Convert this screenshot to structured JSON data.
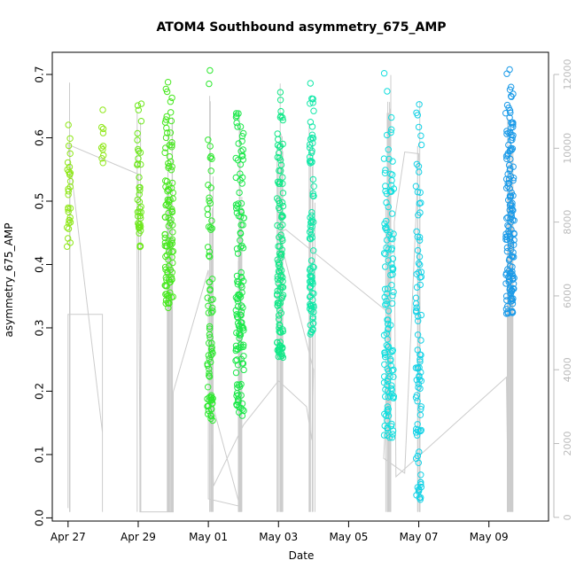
{
  "chart_data": {
    "type": "scatter",
    "title": "ATOM4 Southbound asymmetry_675_AMP",
    "xlabel": "Date",
    "ylabel": "asymmetry_675_AMP",
    "x_ticks": [
      "Apr 27",
      "Apr 29",
      "May 01",
      "May 03",
      "May 05",
      "May 07",
      "May 09"
    ],
    "x_tick_days": [
      0,
      2,
      4,
      6,
      8,
      10,
      12
    ],
    "xlim_days": [
      -0.45,
      13.7
    ],
    "ylim": [
      -0.005,
      0.735
    ],
    "y_ticks": [
      0.0,
      0.1,
      0.2,
      0.3,
      0.4,
      0.5,
      0.6,
      0.7
    ],
    "y_tick_labels": [
      "0.0",
      "0.1",
      "0.2",
      "0.3",
      "0.4",
      "0.5",
      "0.6",
      "0.7"
    ],
    "y2_ticks": [
      0,
      2000,
      4000,
      6000,
      8000,
      10000,
      12000
    ],
    "y2_tick_labels": [
      "0",
      "2000",
      "4000",
      "6000",
      "8000",
      "10000",
      "12000"
    ],
    "y2lim": [
      -100,
      12600
    ],
    "grid": false,
    "legend": "none",
    "point_style": "open-circle",
    "count_series_color": "#cccccc",
    "clusters": [
      {
        "x": 0.02,
        "spread": 0.05,
        "ymin": 0.425,
        "ymax": 0.655,
        "n": 30,
        "color": "#8fe818"
      },
      {
        "x": 0.98,
        "spread": 0.03,
        "ymin": 0.555,
        "ymax": 0.655,
        "n": 10,
        "color": "#8fe818"
      },
      {
        "x": 2.03,
        "spread": 0.06,
        "ymin": 0.425,
        "ymax": 0.695,
        "n": 40,
        "color": "#6ee81c"
      },
      {
        "x": 2.88,
        "spread": 0.12,
        "ymin": 0.33,
        "ymax": 0.705,
        "n": 110,
        "color": "#48e820"
      },
      {
        "x": 4.05,
        "spread": 0.08,
        "ymin": 0.15,
        "ymax": 0.72,
        "n": 80,
        "color": "#2ee830"
      },
      {
        "x": 4.9,
        "spread": 0.12,
        "ymin": 0.16,
        "ymax": 0.675,
        "n": 130,
        "color": "#1ce84a"
      },
      {
        "x": 6.05,
        "spread": 0.09,
        "ymin": 0.245,
        "ymax": 0.685,
        "n": 120,
        "color": "#12e888"
      },
      {
        "x": 6.95,
        "spread": 0.06,
        "ymin": 0.29,
        "ymax": 0.72,
        "n": 90,
        "color": "#12e8a8"
      },
      {
        "x": 9.15,
        "spread": 0.14,
        "ymin": 0.125,
        "ymax": 0.725,
        "n": 130,
        "color": "#12dede"
      },
      {
        "x": 10.0,
        "spread": 0.08,
        "ymin": 0.02,
        "ymax": 0.7,
        "n": 90,
        "color": "#14d2e6"
      },
      {
        "x": 12.6,
        "spread": 0.12,
        "ymin": 0.32,
        "ymax": 0.71,
        "n": 150,
        "color": "#1a9ae8"
      }
    ],
    "count_path": [
      [
        0.0,
        250
      ],
      [
        0.0,
        5500
      ],
      [
        0.98,
        5500
      ],
      [
        0.98,
        150
      ],
      [
        0.98,
        2300
      ],
      [
        0.0,
        10100
      ],
      [
        2.0,
        9300
      ],
      [
        2.05,
        1700
      ],
      [
        2.05,
        150
      ],
      [
        3.0,
        150
      ],
      [
        3.0,
        3400
      ],
      [
        4.0,
        6700
      ],
      [
        4.0,
        500
      ],
      [
        4.9,
        300
      ],
      [
        4.05,
        3300
      ],
      [
        4.15,
        850
      ],
      [
        5.0,
        2500
      ],
      [
        6.0,
        3700
      ],
      [
        6.8,
        3000
      ],
      [
        6.95,
        2100
      ],
      [
        7.0,
        4000
      ],
      [
        6.0,
        7700
      ],
      [
        6.2,
        7800
      ],
      [
        9.2,
        5500
      ],
      [
        9.0,
        1600
      ],
      [
        9.6,
        1200
      ],
      [
        10.0,
        9850
      ],
      [
        9.6,
        9900
      ],
      [
        9.3,
        8000
      ],
      [
        9.35,
        1100
      ],
      [
        12.5,
        3800
      ],
      [
        12.55,
        200
      ]
    ],
    "count_spikes": [
      {
        "x": 0.02,
        "lo": 150,
        "hi": 11800,
        "n": 3
      },
      {
        "x": 2.03,
        "lo": 150,
        "hi": 11600,
        "n": 3
      },
      {
        "x": 2.9,
        "lo": 150,
        "hi": 11500,
        "n": 12
      },
      {
        "x": 4.05,
        "lo": 150,
        "hi": 12100,
        "n": 6
      },
      {
        "x": 4.9,
        "lo": 150,
        "hi": 11300,
        "n": 12
      },
      {
        "x": 6.05,
        "lo": 150,
        "hi": 12000,
        "n": 10
      },
      {
        "x": 6.95,
        "lo": 150,
        "hi": 11000,
        "n": 7
      },
      {
        "x": 9.15,
        "lo": 150,
        "hi": 12000,
        "n": 12
      },
      {
        "x": 10.0,
        "lo": 150,
        "hi": 11700,
        "n": 6
      },
      {
        "x": 12.6,
        "lo": 150,
        "hi": 11400,
        "n": 15
      }
    ]
  }
}
